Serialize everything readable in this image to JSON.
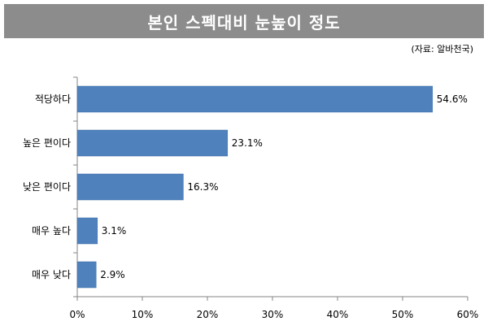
{
  "source": "(자료: 알바천국)",
  "chart_data": {
    "type": "bar",
    "orientation": "horizontal",
    "title": "본인 스펙대비 눈높이 정도",
    "categories": [
      "적당하다",
      "높은 편이다",
      "낮은 편이다",
      "매우 높다",
      "매우 낮다"
    ],
    "values": [
      54.6,
      23.1,
      16.3,
      3.1,
      2.9
    ],
    "value_labels": [
      "54.6%",
      "23.1%",
      "16.3%",
      "3.1%",
      "2.9%"
    ],
    "xlim": [
      0,
      60
    ],
    "xticks": [
      0,
      10,
      20,
      30,
      40,
      50,
      60
    ],
    "xtick_labels": [
      "0%",
      "10%",
      "20%",
      "30%",
      "40%",
      "50%",
      "60%"
    ],
    "bar_color": "#4f81bd",
    "grid": false,
    "legend": "none"
  }
}
